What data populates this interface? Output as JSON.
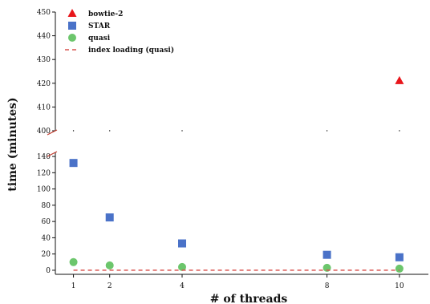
{
  "chart_data": {
    "type": "scatter",
    "title": "",
    "xlabel": "# of threads",
    "ylabel": "time (minutes)",
    "x": [
      1,
      2,
      4,
      8,
      10
    ],
    "x_ticks": [
      "1",
      "2",
      "4",
      "8",
      "10"
    ],
    "xlim": [
      0.5,
      10.8
    ],
    "y_axis_break": true,
    "upper_panel": {
      "ylim": [
        400,
        450
      ],
      "y_ticks": [
        "400",
        "410",
        "420",
        "430",
        "440",
        "450"
      ]
    },
    "lower_panel": {
      "ylim": [
        -5,
        145
      ],
      "y_ticks": [
        "0",
        "20",
        "40",
        "60",
        "80",
        "100",
        "120",
        "140"
      ]
    },
    "legend": {
      "position": "top-left"
    },
    "series": [
      {
        "name": "bowtie-2",
        "marker": "triangle",
        "color": "#e8161b",
        "x": [
          10
        ],
        "values": [
          421
        ]
      },
      {
        "name": "STAR",
        "marker": "square",
        "color": "#4a72c8",
        "x": [
          1,
          2,
          4,
          8,
          10
        ],
        "values": [
          132,
          65,
          33,
          19,
          16
        ]
      },
      {
        "name": "quasi",
        "marker": "circle",
        "color": "#6cc66c",
        "x": [
          1,
          2,
          4,
          8,
          10
        ],
        "values": [
          10,
          6,
          4,
          3,
          2
        ]
      },
      {
        "name": "index loading (quasi)",
        "marker": "dashed-line",
        "color": "#d9534f",
        "x": [
          1,
          10
        ],
        "values": [
          0,
          0
        ]
      }
    ]
  }
}
